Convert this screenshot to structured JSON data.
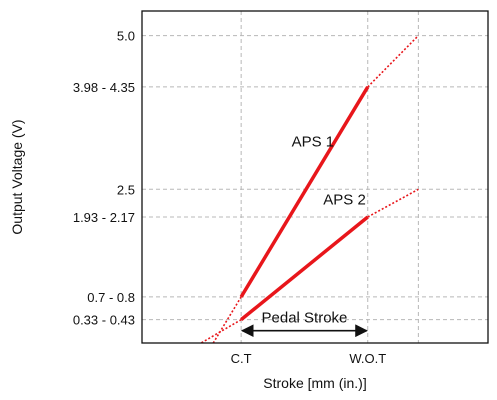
{
  "chart_data": {
    "type": "line",
    "title": "",
    "xlabel": "Stroke [mm (in.)]",
    "ylabel": "Output Voltage (V)",
    "grid": true,
    "x_ticks": [
      {
        "label": "C.T",
        "x": 1
      },
      {
        "label": "W.O.T",
        "x": 4
      }
    ],
    "y_ticks": [
      {
        "label": "5.0",
        "y": 5.0
      },
      {
        "label": "3.98 - 4.35",
        "y": 4.165
      },
      {
        "label": "2.5",
        "y": 2.5
      },
      {
        "label": "1.93 - 2.17",
        "y": 2.05
      },
      {
        "label": "0.7 - 0.8",
        "y": 0.75
      },
      {
        "label": "0.33 - 0.43",
        "y": 0.38
      }
    ],
    "xlim": [
      -1.35,
      6.85
    ],
    "ylim": [
      0,
      5.4
    ],
    "extra_vgrid_x": [
      5.2
    ],
    "series": [
      {
        "name": "APS 1",
        "color": "#e8161b",
        "label_at": {
          "x": 2.7,
          "y": 3.2
        },
        "solid": [
          {
            "x": 1,
            "y": 0.75
          },
          {
            "x": 4,
            "y": 4.165
          }
        ],
        "dotted_start": [
          {
            "x": 1,
            "y": 0.75
          },
          {
            "x": 0.25,
            "y": -0.1
          }
        ],
        "dotted_end": [
          {
            "x": 4,
            "y": 4.165
          },
          {
            "x": 5.2,
            "y": 5.0
          }
        ]
      },
      {
        "name": "APS 2",
        "color": "#e8161b",
        "label_at": {
          "x": 3.45,
          "y": 2.25
        },
        "solid": [
          {
            "x": 1,
            "y": 0.38
          },
          {
            "x": 4,
            "y": 2.05
          }
        ],
        "dotted_start": [
          {
            "x": 1,
            "y": 0.38
          },
          {
            "x": -0.2,
            "y": -0.1
          }
        ],
        "dotted_end": [
          {
            "x": 4,
            "y": 2.05
          },
          {
            "x": 5.2,
            "y": 2.5
          }
        ]
      }
    ],
    "annotations": [
      {
        "label": "Pedal Stroke",
        "type": "double-arrow",
        "x_from": 1,
        "x_to": 4,
        "y": 0.2
      }
    ]
  }
}
